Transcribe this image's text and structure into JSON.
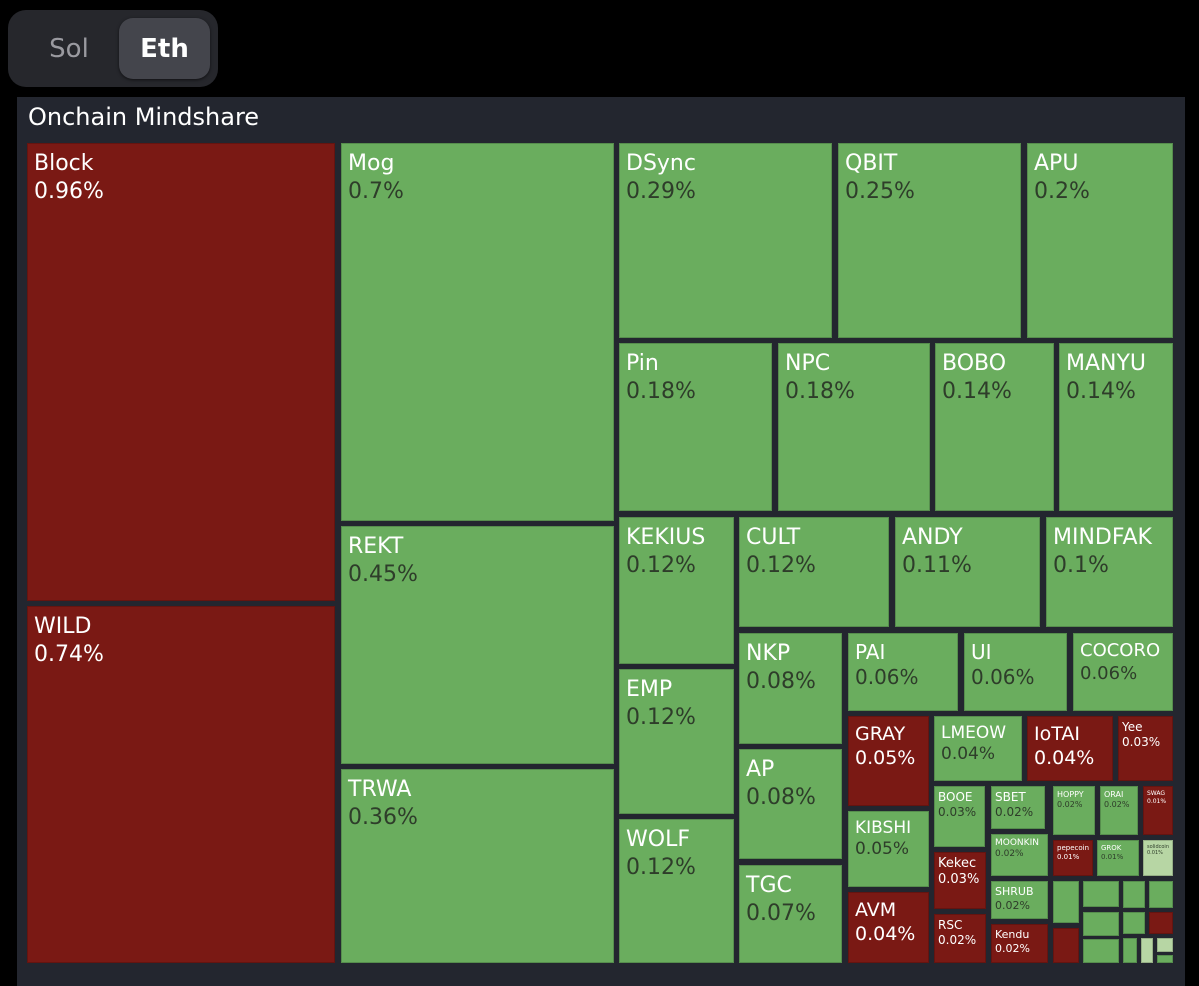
{
  "toggle": {
    "sol_label": "Sol",
    "eth_label": "Eth",
    "selected": "Eth"
  },
  "chart_data": {
    "type": "treemap",
    "title": "Onchain Mindshare",
    "colors": {
      "up": "#6aad5e",
      "down": "#7a1914",
      "light": "#b7d6a4",
      "background": "#23262f"
    },
    "items": [
      {
        "name": "Block",
        "value": "0.96%",
        "trend": "down"
      },
      {
        "name": "WILD",
        "value": "0.74%",
        "trend": "down"
      },
      {
        "name": "Mog",
        "value": "0.7%",
        "trend": "up"
      },
      {
        "name": "REKT",
        "value": "0.45%",
        "trend": "up"
      },
      {
        "name": "TRWA",
        "value": "0.36%",
        "trend": "up"
      },
      {
        "name": "DSync",
        "value": "0.29%",
        "trend": "up"
      },
      {
        "name": "QBIT",
        "value": "0.25%",
        "trend": "up"
      },
      {
        "name": "APU",
        "value": "0.2%",
        "trend": "up"
      },
      {
        "name": "Pin",
        "value": "0.18%",
        "trend": "up"
      },
      {
        "name": "NPC",
        "value": "0.18%",
        "trend": "up"
      },
      {
        "name": "BOBO",
        "value": "0.14%",
        "trend": "up"
      },
      {
        "name": "MANYU",
        "value": "0.14%",
        "trend": "up"
      },
      {
        "name": "KEKIUS",
        "value": "0.12%",
        "trend": "up"
      },
      {
        "name": "EMP",
        "value": "0.12%",
        "trend": "up"
      },
      {
        "name": "WOLF",
        "value": "0.12%",
        "trend": "up"
      },
      {
        "name": "CULT",
        "value": "0.12%",
        "trend": "up"
      },
      {
        "name": "ANDY",
        "value": "0.11%",
        "trend": "up"
      },
      {
        "name": "MINDFAK",
        "value": "0.1%",
        "trend": "up"
      },
      {
        "name": "NKP",
        "value": "0.08%",
        "trend": "up"
      },
      {
        "name": "AP",
        "value": "0.08%",
        "trend": "up"
      },
      {
        "name": "TGC",
        "value": "0.07%",
        "trend": "up"
      },
      {
        "name": "PAI",
        "value": "0.06%",
        "trend": "up"
      },
      {
        "name": "UI",
        "value": "0.06%",
        "trend": "up"
      },
      {
        "name": "COCORO",
        "value": "0.06%",
        "trend": "up"
      },
      {
        "name": "GRAY",
        "value": "0.05%",
        "trend": "down"
      },
      {
        "name": "KIBSHI",
        "value": "0.05%",
        "trend": "up"
      },
      {
        "name": "AVM",
        "value": "0.04%",
        "trend": "down"
      },
      {
        "name": "LMEOW",
        "value": "0.04%",
        "trend": "up"
      },
      {
        "name": "IoTAI",
        "value": "0.04%",
        "trend": "down"
      },
      {
        "name": "Yee",
        "value": "0.03%",
        "trend": "down"
      },
      {
        "name": "BOOE",
        "value": "0.03%",
        "trend": "up"
      },
      {
        "name": "Kekec",
        "value": "0.03%",
        "trend": "down"
      },
      {
        "name": "RSC",
        "value": "0.02%",
        "trend": "down"
      },
      {
        "name": "SBET",
        "value": "0.02%",
        "trend": "up"
      },
      {
        "name": "MOONKIN",
        "value": "0.02%",
        "trend": "up"
      },
      {
        "name": "SHRUB",
        "value": "0.02%",
        "trend": "up"
      },
      {
        "name": "Kendu",
        "value": "0.02%",
        "trend": "down"
      },
      {
        "name": "HOPPY",
        "value": "0.02%",
        "trend": "up"
      },
      {
        "name": "ORAI",
        "value": "0.02%",
        "trend": "up"
      },
      {
        "name": "SWAG",
        "value": "0.01%",
        "trend": "down"
      },
      {
        "name": "pepecoin",
        "value": "0.01%",
        "trend": "down"
      },
      {
        "name": "GROK",
        "value": "0.01%",
        "trend": "up"
      },
      {
        "name": "solidcoin",
        "value": "0.01%",
        "trend": "light"
      },
      {
        "name": "",
        "value": "",
        "trend": "up"
      },
      {
        "name": "",
        "value": "",
        "trend": "up"
      },
      {
        "name": "",
        "value": "",
        "trend": "up"
      },
      {
        "name": "",
        "value": "",
        "trend": "up"
      },
      {
        "name": "",
        "value": "",
        "trend": "up"
      },
      {
        "name": "",
        "value": "",
        "trend": "up"
      },
      {
        "name": "",
        "value": "",
        "trend": "down"
      },
      {
        "name": "",
        "value": "",
        "trend": "down"
      },
      {
        "name": "",
        "value": "",
        "trend": "up"
      },
      {
        "name": "",
        "value": "",
        "trend": "up"
      },
      {
        "name": "",
        "value": "",
        "trend": "light"
      },
      {
        "name": "",
        "value": "",
        "trend": "light"
      },
      {
        "name": "",
        "value": "",
        "trend": "up"
      },
      {
        "name": "",
        "value": "",
        "trend": "up"
      }
    ]
  }
}
